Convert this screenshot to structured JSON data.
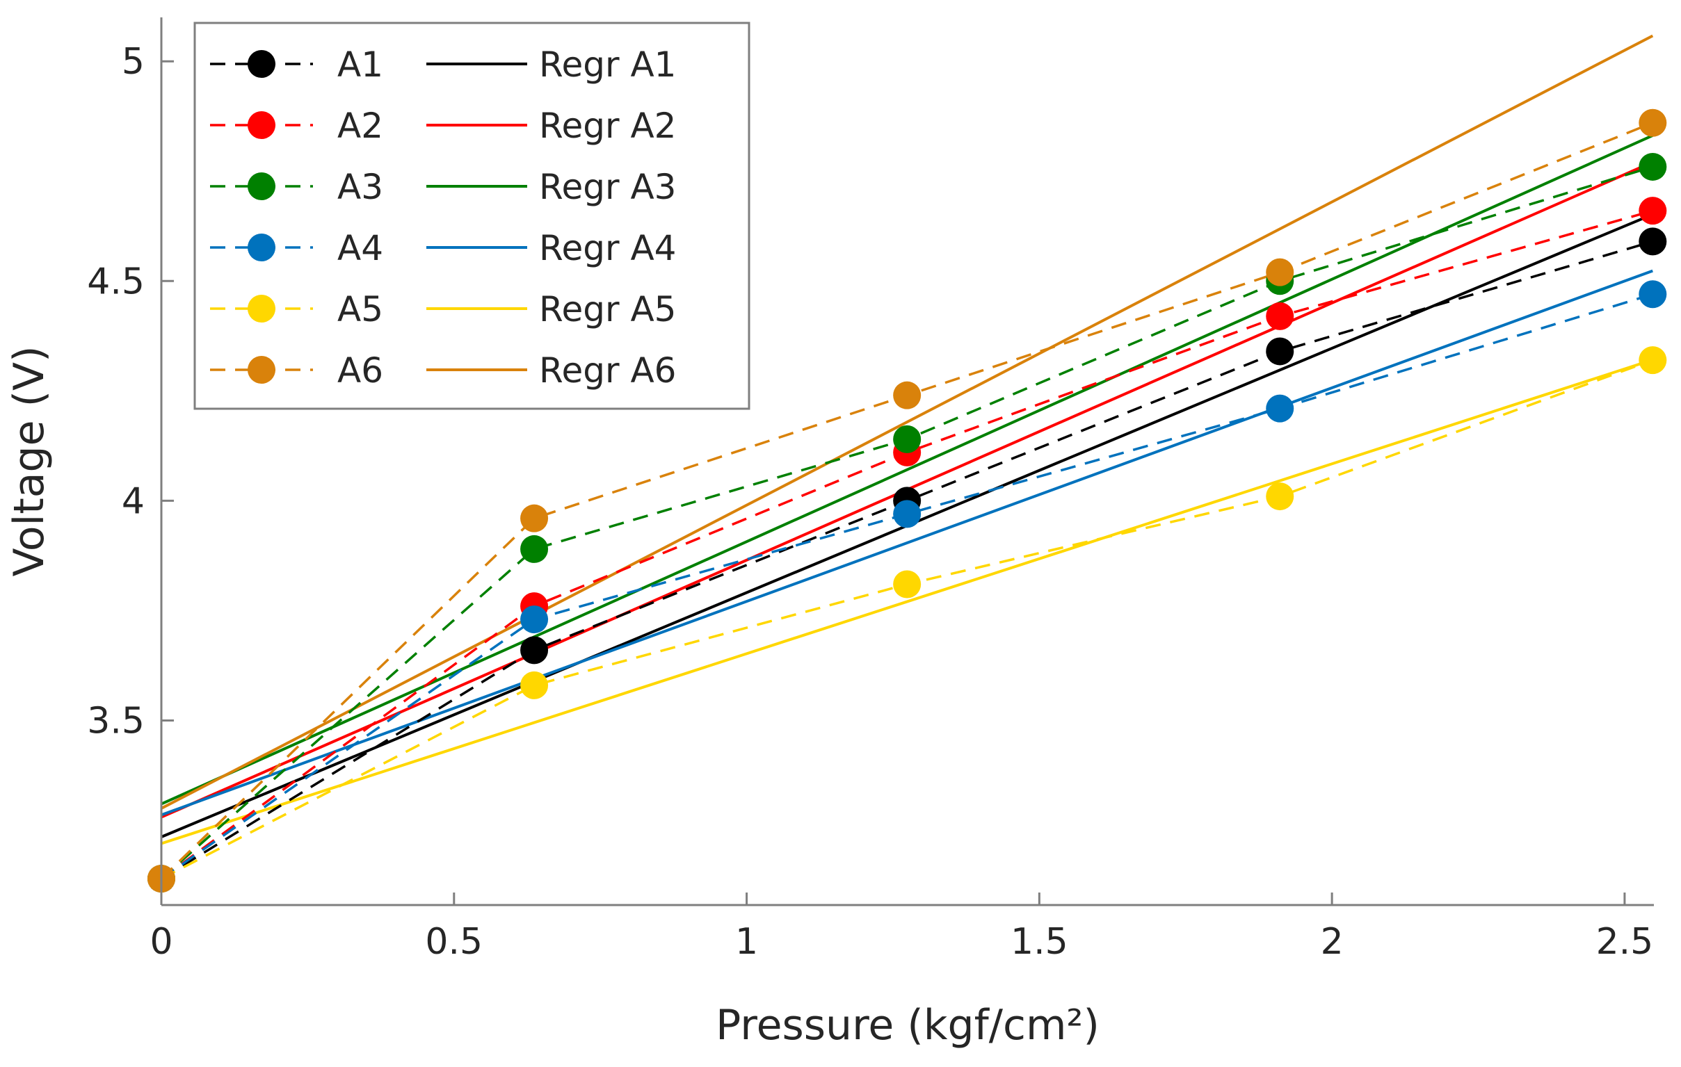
{
  "chart_data": {
    "type": "line",
    "title": "",
    "xlabel": "Pressure (kgf/cm²)",
    "ylabel": "Voltage (V)",
    "xlim": [
      0,
      2.55
    ],
    "ylim": [
      3.08,
      5.1
    ],
    "xticks": [
      0,
      0.5,
      1,
      1.5,
      2,
      2.5
    ],
    "xtick_labels": [
      "0",
      "0.5",
      "1",
      "1.5",
      "2",
      "2.5"
    ],
    "yticks": [
      3.5,
      4,
      4.5,
      5
    ],
    "ytick_labels": [
      "3.5",
      "4",
      "4.5",
      "5"
    ],
    "grid": false,
    "legend_position": "top-left",
    "x": [
      0,
      0.637,
      1.274,
      1.911,
      2.548
    ],
    "series": [
      {
        "name": "A1",
        "color": "#000000",
        "values": [
          3.14,
          3.66,
          4.0,
          4.34,
          4.59
        ],
        "regression_name": "Regr A1",
        "regression": {
          "intercept": 3.235,
          "slope": 0.556
        }
      },
      {
        "name": "A2",
        "color": "#ff0000",
        "values": [
          3.14,
          3.76,
          4.11,
          4.42,
          4.66
        ],
        "regression_name": "Regr A2",
        "regression": {
          "intercept": 3.28,
          "slope": 0.585
        }
      },
      {
        "name": "A3",
        "color": "#008000",
        "values": [
          3.14,
          3.89,
          4.14,
          4.5,
          4.76
        ],
        "regression_name": "Regr A3",
        "regression": {
          "intercept": 3.31,
          "slope": 0.597
        }
      },
      {
        "name": "A4",
        "color": "#0072bd",
        "values": [
          3.14,
          3.73,
          3.97,
          4.21,
          4.47
        ],
        "regression_name": "Regr A4",
        "regression": {
          "intercept": 3.285,
          "slope": 0.486
        }
      },
      {
        "name": "A5",
        "color": "#ffd700",
        "values": [
          3.14,
          3.58,
          3.81,
          4.01,
          4.32
        ],
        "regression_name": "Regr A5",
        "regression": {
          "intercept": 3.22,
          "slope": 0.432
        }
      },
      {
        "name": "A6",
        "color": "#d9820b",
        "values": [
          3.14,
          3.96,
          4.24,
          4.52,
          4.86
        ],
        "regression_name": "Regr A6",
        "regression": {
          "intercept": 3.3,
          "slope": 0.69
        }
      }
    ]
  }
}
